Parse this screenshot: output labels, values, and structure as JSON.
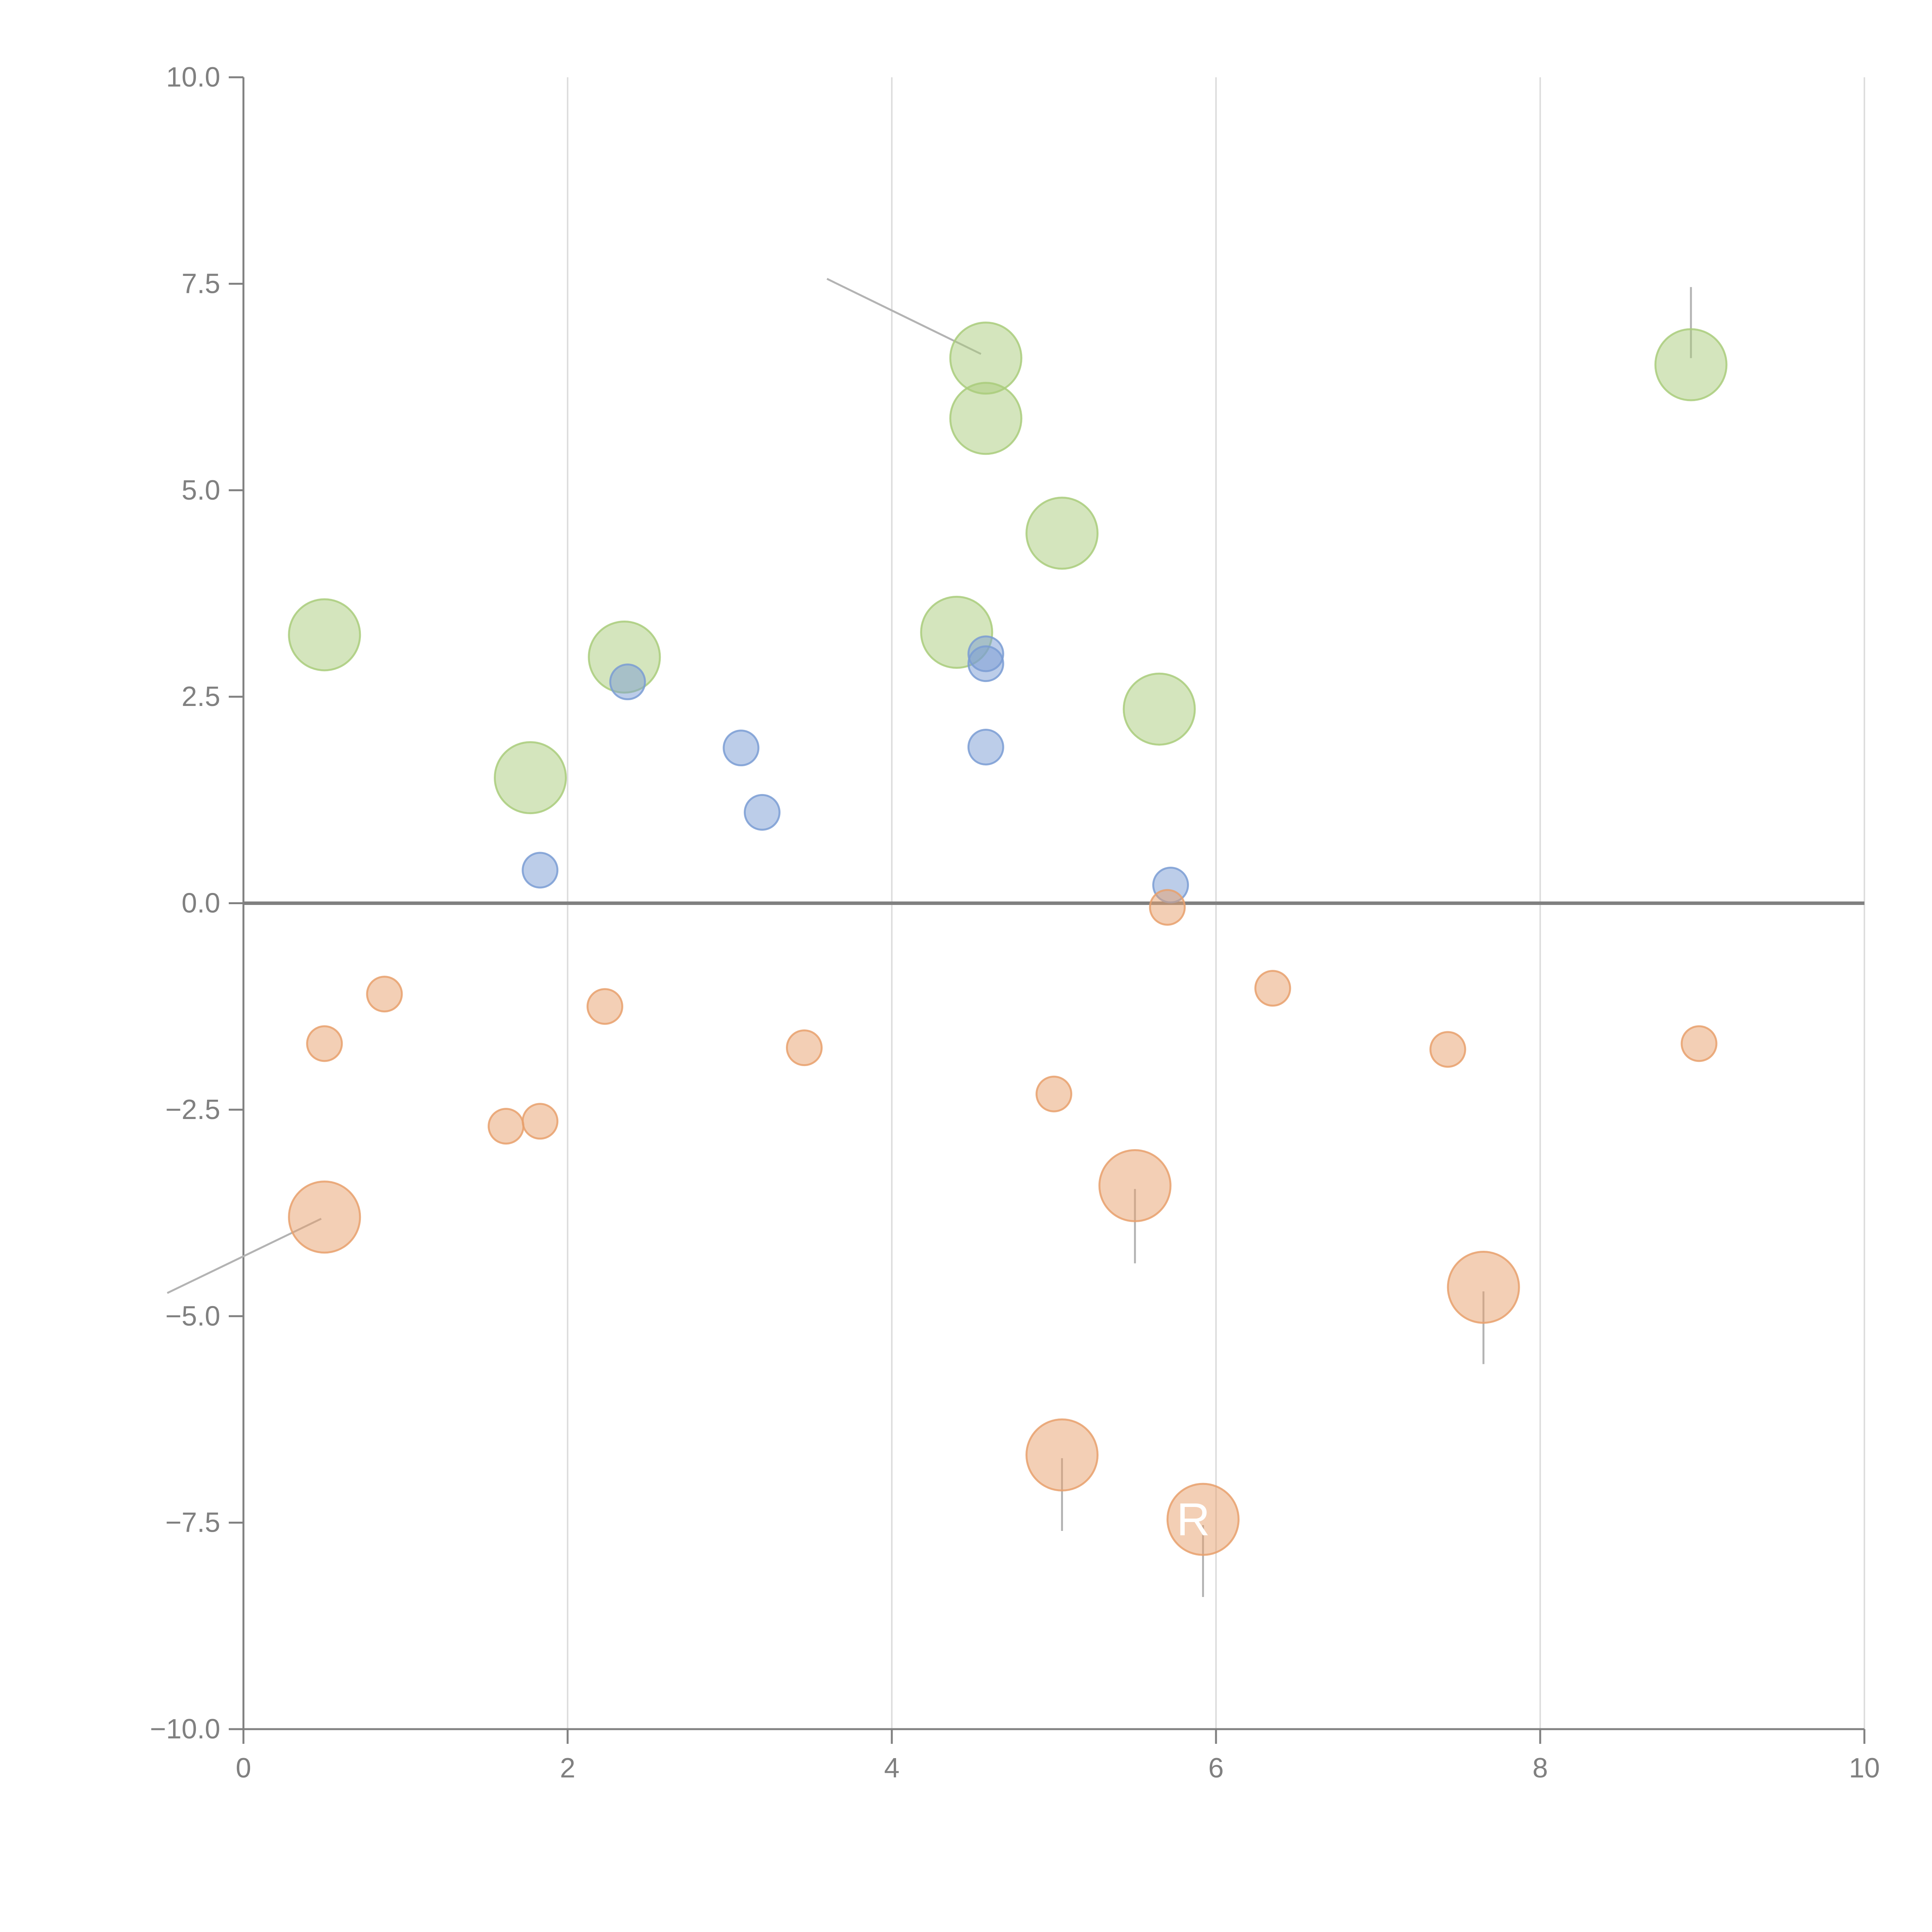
{
  "colors": {
    "green": "#a9cc7b",
    "blue": "#7a9cd3",
    "orange": "#e8a06c",
    "axis": "#808080",
    "grid": "#dddddd",
    "zero_line": "#808080",
    "leader": "#b3b3b3"
  },
  "chart_data": {
    "type": "scatter",
    "title": "",
    "xlabel": "",
    "ylabel": "",
    "xlim": [
      0,
      10
    ],
    "ylim": [
      -10,
      10
    ],
    "x_ticks": [
      "0",
      "2",
      "4",
      "6",
      "8",
      "10"
    ],
    "y_ticks": [
      "10.0",
      "7.5",
      "5.0",
      "2.5",
      "0.0",
      "−2.5",
      "−5.0",
      "−7.5",
      "−10.0"
    ],
    "grid": "vertical",
    "series": [
      {
        "name": "green",
        "color_key": "green",
        "size": "large",
        "points": [
          {
            "x": 4.58,
            "y": 6.6
          },
          {
            "x": 4.58,
            "y": 5.87
          },
          {
            "x": 8.93,
            "y": 6.52
          },
          {
            "x": 5.05,
            "y": 4.48
          },
          {
            "x": 0.5,
            "y": 3.25
          },
          {
            "x": 4.4,
            "y": 3.28
          },
          {
            "x": 2.35,
            "y": 2.98
          },
          {
            "x": 5.65,
            "y": 2.35
          },
          {
            "x": 1.77,
            "y": 1.52
          }
        ]
      },
      {
        "name": "blue",
        "color_key": "blue",
        "size": "small",
        "points": [
          {
            "x": 4.58,
            "y": 3.02
          },
          {
            "x": 4.58,
            "y": 2.9
          },
          {
            "x": 2.37,
            "y": 2.68
          },
          {
            "x": 3.07,
            "y": 1.88
          },
          {
            "x": 4.58,
            "y": 1.89
          },
          {
            "x": 3.2,
            "y": 1.1
          },
          {
            "x": 1.83,
            "y": 0.4
          },
          {
            "x": 5.72,
            "y": 0.22
          }
        ]
      },
      {
        "name": "orange",
        "color_key": "orange",
        "size": "small",
        "points": [
          {
            "x": 5.7,
            "y": -0.05
          },
          {
            "x": 6.35,
            "y": -1.03
          },
          {
            "x": 0.87,
            "y": -1.1
          },
          {
            "x": 2.23,
            "y": -1.25
          },
          {
            "x": 0.5,
            "y": -1.7
          },
          {
            "x": 3.46,
            "y": -1.75
          },
          {
            "x": 7.43,
            "y": -1.77
          },
          {
            "x": 8.98,
            "y": -1.7
          },
          {
            "x": 5.0,
            "y": -2.31
          },
          {
            "x": 1.62,
            "y": -2.7
          },
          {
            "x": 1.83,
            "y": -2.64
          }
        ]
      },
      {
        "name": "orange-large",
        "color_key": "orange",
        "size": "large",
        "points": [
          {
            "x": 5.5,
            "y": -3.42
          },
          {
            "x": 0.5,
            "y": -3.8
          },
          {
            "x": 7.65,
            "y": -4.65
          },
          {
            "x": 5.05,
            "y": -6.68
          },
          {
            "x": 5.92,
            "y": -7.46
          }
        ]
      }
    ],
    "leaders": [
      {
        "x1": 3.6,
        "y1": 7.56,
        "x2": 4.55,
        "y2": 6.65,
        "color_key": "leader"
      },
      {
        "x1": 8.93,
        "y1": 7.46,
        "x2": 8.93,
        "y2": 6.6,
        "color_key": "leader"
      },
      {
        "x1": 4.62,
        "y1": 5.9,
        "x2": 4.75,
        "y2": 6.1,
        "color_key": "white"
      },
      {
        "x1": 5.03,
        "y1": 4.56,
        "x2": 5.15,
        "y2": 4.83,
        "color_key": "white"
      },
      {
        "x1": 2.38,
        "y1": 3.03,
        "x2": 2.52,
        "y2": 3.28,
        "color_key": "white"
      },
      {
        "x1": 5.68,
        "y1": 2.39,
        "x2": 5.9,
        "y2": 2.6,
        "color_key": "white"
      },
      {
        "x1": 1.8,
        "y1": 1.58,
        "x2": 1.93,
        "y2": 1.78,
        "color_key": "white"
      },
      {
        "x1": 0.48,
        "y1": -3.82,
        "x2": -0.47,
        "y2": -4.72,
        "color_key": "leader"
      },
      {
        "x1": 5.5,
        "y1": -3.46,
        "x2": 5.5,
        "y2": -4.36,
        "color_key": "leader"
      },
      {
        "x1": 7.65,
        "y1": -4.7,
        "x2": 7.65,
        "y2": -5.58,
        "color_key": "leader"
      },
      {
        "x1": 5.05,
        "y1": -6.72,
        "x2": 5.05,
        "y2": -7.6,
        "color_key": "leader"
      },
      {
        "x1": 5.92,
        "y1": -7.53,
        "x2": 5.92,
        "y2": -8.4,
        "color_key": "leader"
      }
    ],
    "annotations": [
      {
        "text": "R",
        "x": 5.86,
        "y": -7.46
      }
    ]
  }
}
